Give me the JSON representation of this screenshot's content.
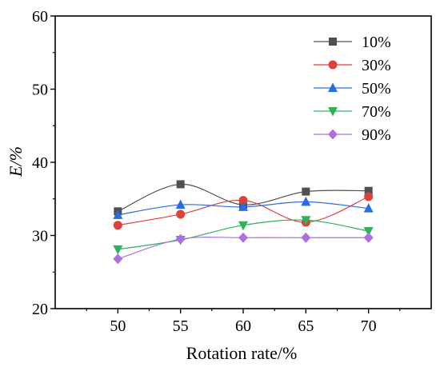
{
  "chart_data": {
    "type": "line",
    "title": "",
    "xlabel": "Rotation rate/%",
    "ylabel": "E/%",
    "x": [
      50,
      55,
      60,
      65,
      70
    ],
    "xlim": [
      45,
      75
    ],
    "ylim": [
      20,
      60
    ],
    "xticks": [
      "50",
      "55",
      "60",
      "65",
      "70"
    ],
    "yticks": [
      "20",
      "30",
      "40",
      "50",
      "60"
    ],
    "grid": false,
    "legend_position": "top-right",
    "smooth": true,
    "series": [
      {
        "name": "10%",
        "values": [
          33.3,
          37.0,
          34.2,
          36.0,
          36.1
        ],
        "color": "#505050",
        "marker": "square"
      },
      {
        "name": "30%",
        "values": [
          31.4,
          32.9,
          34.8,
          31.8,
          35.3
        ],
        "color": "#e0403a",
        "marker": "circle"
      },
      {
        "name": "50%",
        "values": [
          32.8,
          34.2,
          33.9,
          34.6,
          33.7
        ],
        "color": "#2a6de0",
        "marker": "triangle-up"
      },
      {
        "name": "70%",
        "values": [
          28.1,
          29.4,
          31.4,
          32.1,
          30.6
        ],
        "color": "#2db35a",
        "marker": "triangle-down"
      },
      {
        "name": "90%",
        "values": [
          26.8,
          29.5,
          29.7,
          29.7,
          29.7
        ],
        "color": "#b06fe0",
        "marker": "diamond"
      }
    ]
  }
}
